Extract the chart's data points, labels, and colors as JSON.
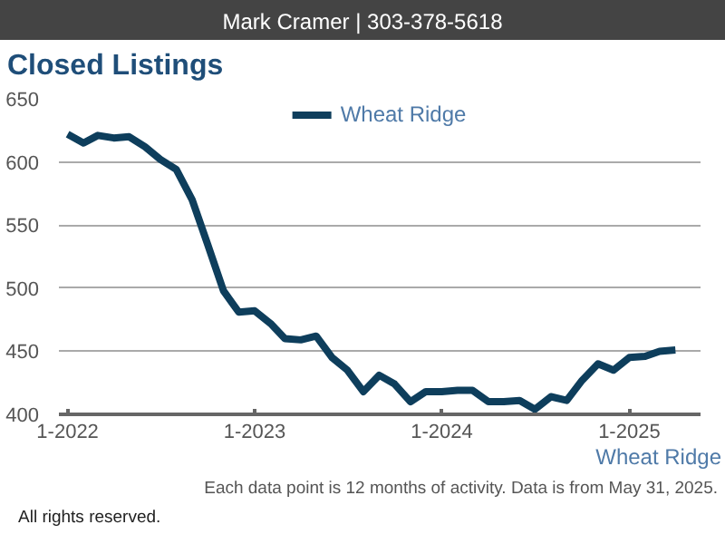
{
  "chart_data": {
    "type": "line",
    "title": "Closed Listings",
    "annotations": [
      "Mark Cramer | 303-378-5618",
      "Wheat Ridge",
      "Each data point is 12 months of activity. Data is from May 31, 2025.",
      "All rights reserved."
    ],
    "x": [
      "2022-01",
      "2022-02",
      "2022-03",
      "2022-04",
      "2022-05",
      "2022-06",
      "2022-07",
      "2022-08",
      "2022-09",
      "2022-10",
      "2022-11",
      "2022-12",
      "2023-01",
      "2023-02",
      "2023-03",
      "2023-04",
      "2023-05",
      "2023-06",
      "2023-07",
      "2023-08",
      "2023-09",
      "2023-10",
      "2023-11",
      "2023-12",
      "2024-01",
      "2024-02",
      "2024-03",
      "2024-04",
      "2024-05",
      "2024-06",
      "2024-07",
      "2024-08",
      "2024-09",
      "2024-10",
      "2024-11",
      "2024-12",
      "2025-01",
      "2025-02",
      "2025-03",
      "2025-04"
    ],
    "series": [
      {
        "name": "Wheat Ridge",
        "color": "#0e3e5c",
        "values": [
          622,
          615,
          621,
          619,
          620,
          612,
          602,
          594,
          570,
          535,
          498,
          481,
          482,
          472,
          460,
          459,
          462,
          445,
          435,
          418,
          431,
          424,
          410,
          418,
          418,
          419,
          419,
          410,
          410,
          411,
          404,
          414,
          411,
          427,
          440,
          435,
          445,
          446,
          450,
          451
        ]
      }
    ],
    "xlim": [
      "2021-12-15",
      "2025-05-20"
    ],
    "xticks": [
      {
        "value": "2022-01",
        "label": "1-2022"
      },
      {
        "value": "2023-01",
        "label": "1-2023"
      },
      {
        "value": "2024-01",
        "label": "1-2024"
      },
      {
        "value": "2025-01",
        "label": "1-2025"
      }
    ],
    "ylim": [
      400,
      650
    ],
    "yticks": [
      400,
      450,
      500,
      550,
      600,
      650
    ],
    "grid": "y",
    "legend": "top",
    "marker": "none",
    "line_style": "solid"
  }
}
